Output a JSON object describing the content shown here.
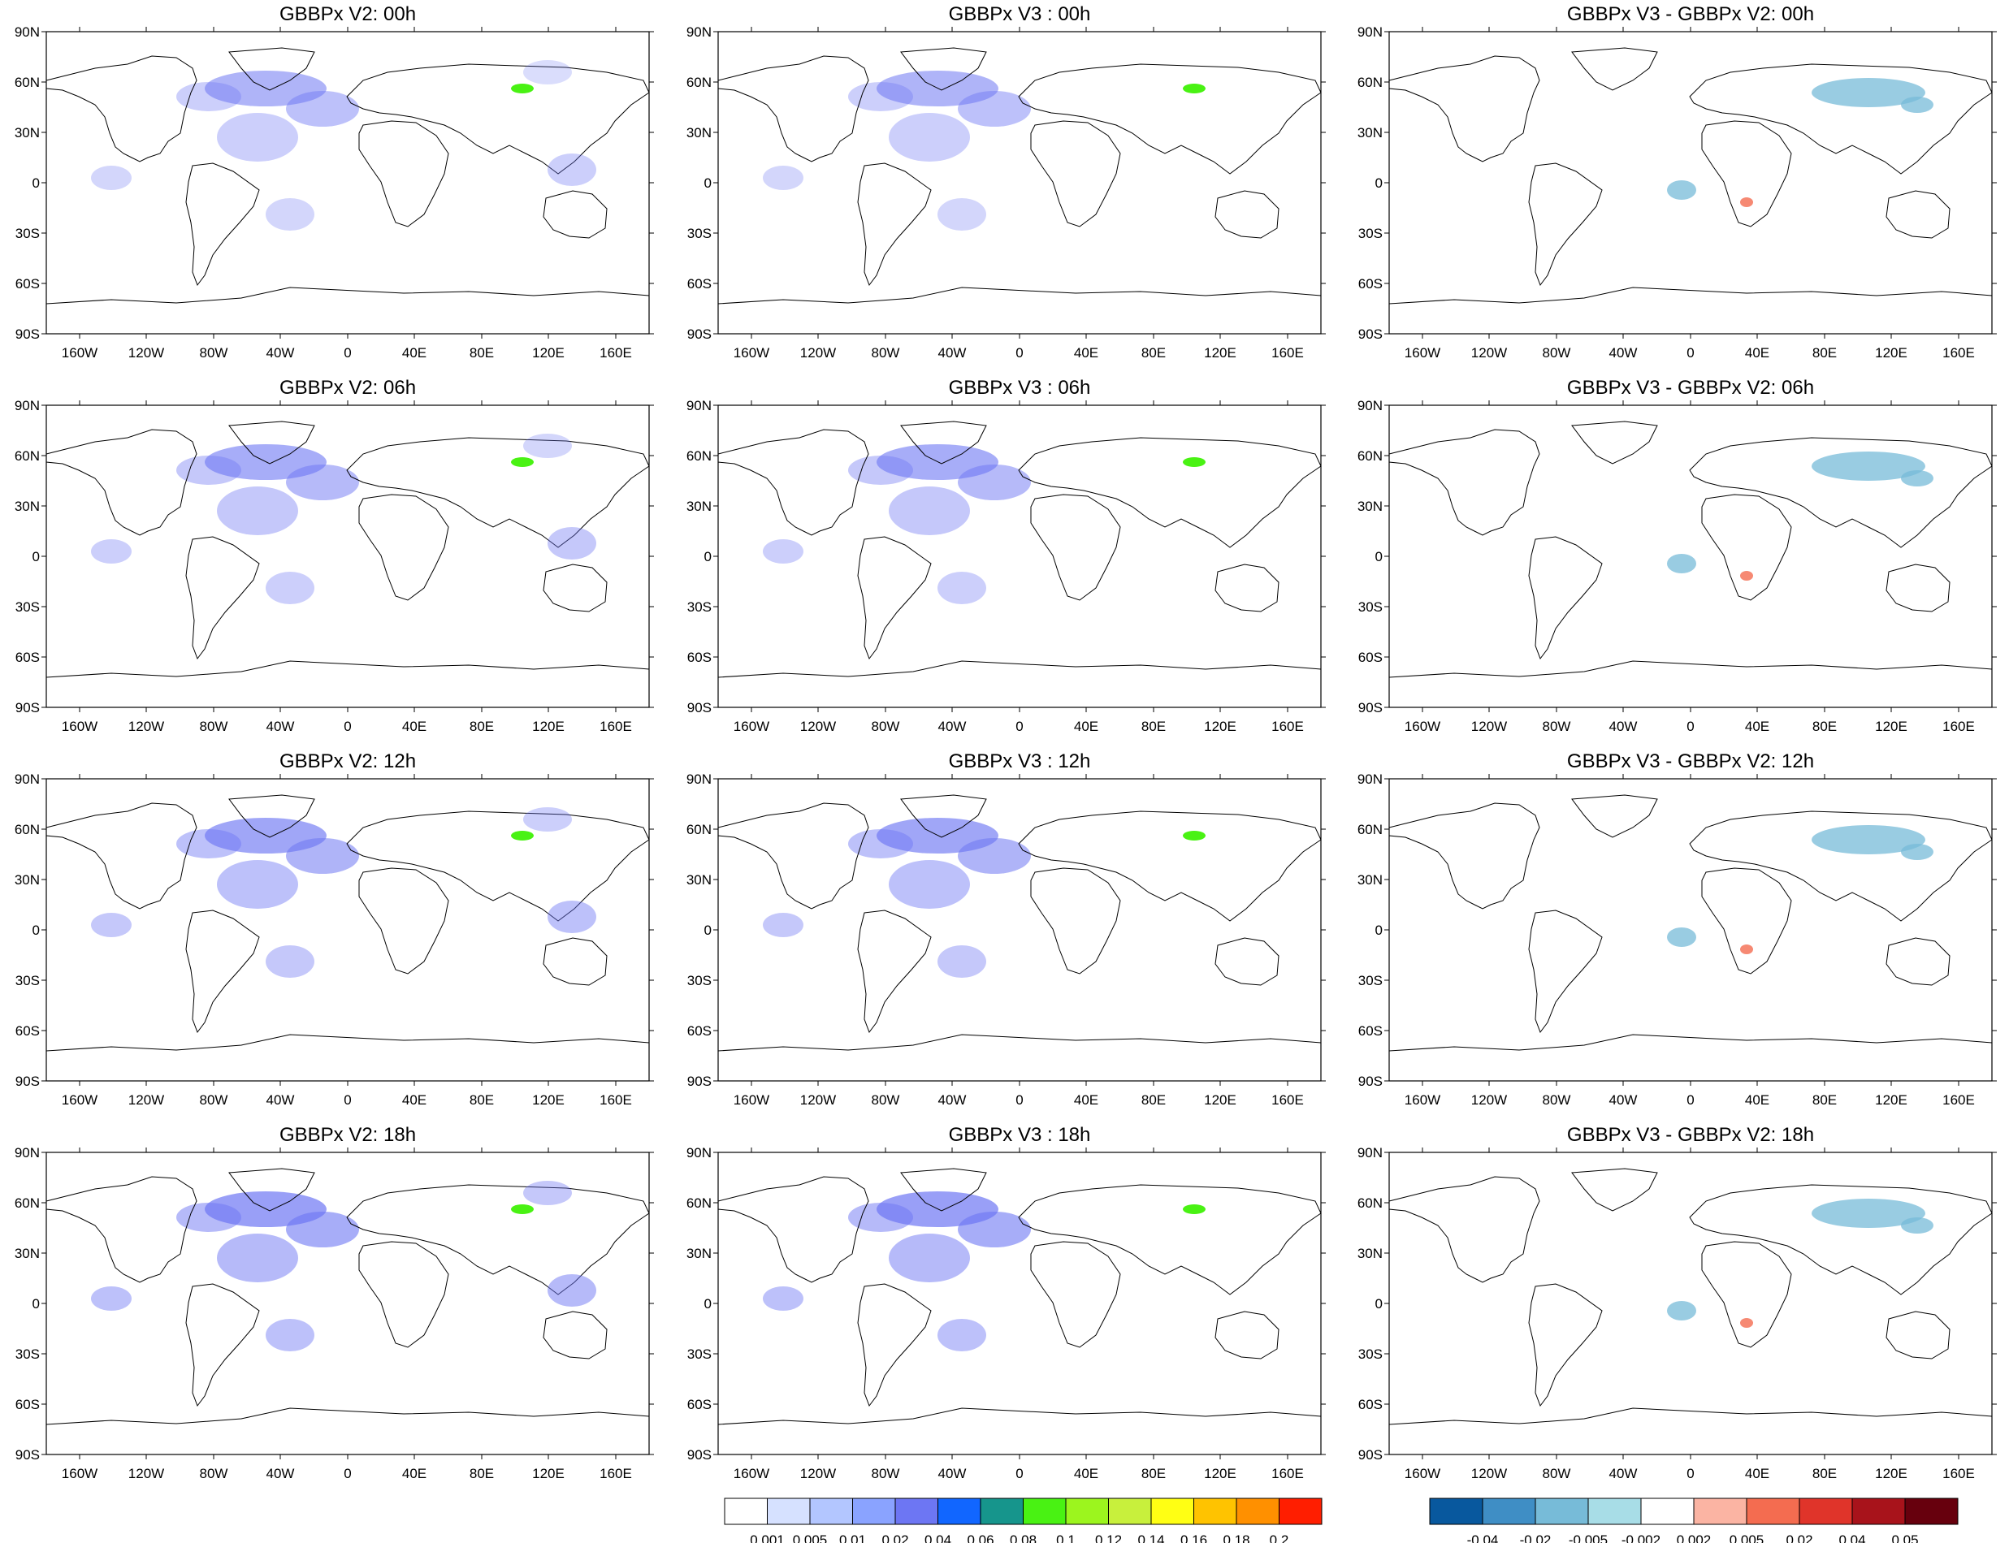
{
  "panel_titles": [
    [
      "GBBPx V2: 00h",
      "GBBPx V3 : 00h",
      "GBBPx V3 - GBBPx V2: 00h"
    ],
    [
      "GBBPx V2: 06h",
      "GBBPx V3 : 06h",
      "GBBPx V3 - GBBPx V2: 06h"
    ],
    [
      "GBBPx V2: 12h",
      "GBBPx V3 : 12h",
      "GBBPx V3 - GBBPx V2: 12h"
    ],
    [
      "GBBPx V2: 18h",
      "GBBPx V3 : 18h",
      "GBBPx V3 - GBBPx V2: 18h"
    ]
  ],
  "lat_ticks": [
    "90N",
    "60N",
    "30N",
    "0",
    "30S",
    "60S",
    "90S"
  ],
  "lon_ticks": [
    "160W",
    "120W",
    "80W",
    "40W",
    "0",
    "40E",
    "80E",
    "120E",
    "160E"
  ],
  "abs_colorbar": {
    "labels": [
      "0.001",
      "0.005",
      "0.01",
      "0.02",
      "0.04",
      "0.06",
      "0.08",
      "0.1",
      "0.12",
      "0.14",
      "0.16",
      "0.18",
      "0.2"
    ],
    "colors": [
      "#ffffff",
      "#d6e1ff",
      "#b3c6ff",
      "#8aa3ff",
      "#6d76f3",
      "#1166ff",
      "#16958c",
      "#49f213",
      "#9cf51e",
      "#c8f03c",
      "#ffff14",
      "#ffc300",
      "#ff9000",
      "#ff1e00"
    ]
  },
  "diff_colorbar": {
    "labels": [
      "-0.04",
      "-0.02",
      "-0.005",
      "-0.002",
      "0.002",
      "0.005",
      "0.02",
      "0.04",
      "0.05"
    ],
    "colors": [
      "#08589e",
      "#3f8ec5",
      "#77bbd8",
      "#a8dde7",
      "#ffffff",
      "#fbb4a3",
      "#f46c50",
      "#e0342a",
      "#a8131b",
      "#67000d"
    ]
  }
}
